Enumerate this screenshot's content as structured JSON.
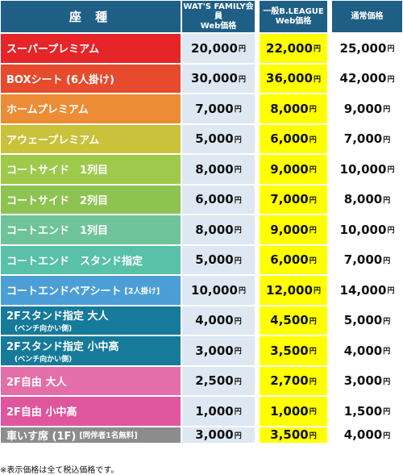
{
  "header": {
    "seat": "座 種",
    "family_line1": "WAT'S FAMILY会員",
    "family_line2": "Web価格",
    "league_line1": "一般B.LEAGUE",
    "league_line2": "Web価格",
    "regular": "通常価格"
  },
  "yen": "円",
  "rows": [
    {
      "name": "スーパープレミアム",
      "color": "#e52528",
      "family": "20,000",
      "league": "22,000",
      "regular": "25,000"
    },
    {
      "name": "BOXシート (6人掛け)",
      "color": "#e74a2c",
      "family": "30,000",
      "league": "36,000",
      "regular": "42,000"
    },
    {
      "name": "ホームプレミアム",
      "color": "#ec8c35",
      "family": "7,000",
      "league": "8,000",
      "regular": "9,000"
    },
    {
      "name": "アウェープレミアム",
      "color": "#c9c23a",
      "family": "5,000",
      "league": "6,000",
      "regular": "7,000"
    },
    {
      "name": "コートサイド　1列目",
      "color": "#9fc94b",
      "family": "8,000",
      "league": "9,000",
      "regular": "10,000"
    },
    {
      "name": "コートサイド　2列目",
      "color": "#8dc451",
      "family": "6,000",
      "league": "7,000",
      "regular": "8,000"
    },
    {
      "name": "コートエンド　1列目",
      "color": "#6ec498",
      "family": "8,000",
      "league": "9,000",
      "regular": "10,000"
    },
    {
      "name": "コートエンド　スタンド指定",
      "color": "#58c1a8",
      "family": "5,000",
      "league": "6,000",
      "regular": "7,000"
    },
    {
      "name": "コートエンドペアシート",
      "sub": "[2人掛け]",
      "color": "#4c9fd6",
      "family": "10,000",
      "league": "12,000",
      "regular": "14,000"
    },
    {
      "name": "2Fスタンド指定 大人",
      "line2": "(ベンチ向かい側)",
      "color": "#167a9a",
      "family": "4,000",
      "league": "4,500",
      "regular": "5,000"
    },
    {
      "name": "2Fスタンド指定 小中高",
      "line2": "(ベンチ向かい側)",
      "color": "#167a9a",
      "family": "3,000",
      "league": "3,500",
      "regular": "4,000"
    },
    {
      "name": "2F自由 大人",
      "color": "#e46fa8",
      "family": "2,500",
      "league": "2,700",
      "regular": "3,000"
    },
    {
      "name": "2F自由 小中高",
      "color": "#e0569e",
      "family": "1,000",
      "league": "1,000",
      "regular": "1,500"
    },
    {
      "name": "車いす席 (1F)",
      "sub": "[同伴者1名無料]",
      "color": "#8c8c8c",
      "family": "3,000",
      "league": "3,500",
      "regular": "4,000"
    }
  ],
  "note": "※表示価格は全て税込価格です。"
}
